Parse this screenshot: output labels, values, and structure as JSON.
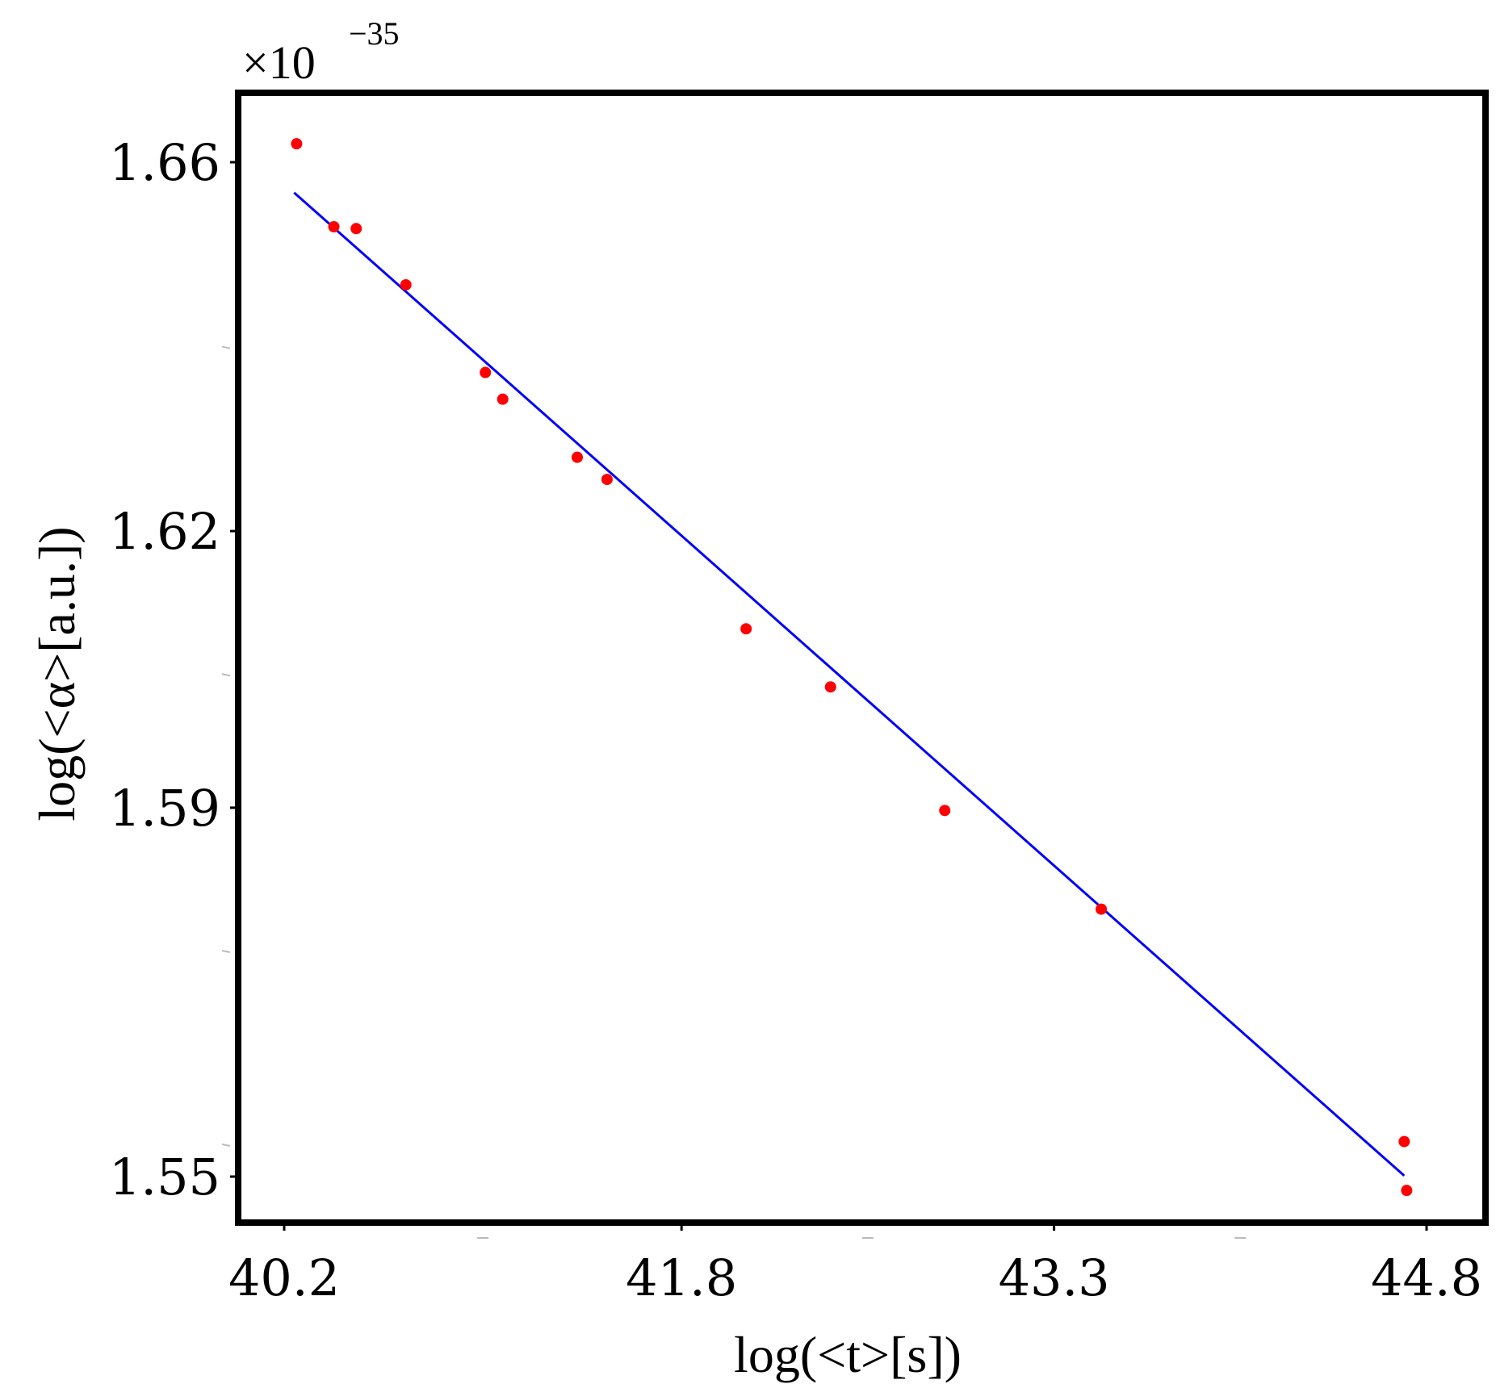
{
  "chart_data": {
    "type": "scatter",
    "title": "",
    "xlabel": "log(<t>[s])",
    "ylabel": "log(<α>[a.u.])",
    "y_multiplier": {
      "base": "×10",
      "exponent": "−35"
    },
    "xlim": [
      40.2,
      44.8
    ],
    "ylim": [
      1.5475,
      1.6725
    ],
    "x_ticks": [
      {
        "value": 40.2,
        "label": "40.2"
      },
      {
        "value": 41.8,
        "label": "41.8"
      },
      {
        "value": 43.3,
        "label": "43.3"
      },
      {
        "value": 44.8,
        "label": "44.8"
      }
    ],
    "x_minor_ticks": [
      41.0,
      42.55,
      44.05
    ],
    "y_ticks": [
      {
        "value": 1.66,
        "label": "1.66"
      },
      {
        "value": 1.62,
        "label": "1.62"
      },
      {
        "value": 1.59,
        "label": "1.59"
      },
      {
        "value": 1.55,
        "label": "1.55"
      }
    ],
    "y_minor_ticks": [
      1.64,
      1.6045,
      1.5745,
      1.5535
    ],
    "grid": false,
    "legend": "none",
    "series": [
      {
        "kind": "points",
        "color": "#ff0000",
        "points": [
          {
            "x": 40.25,
            "y": 1.662
          },
          {
            "x": 40.4,
            "y": 1.653
          },
          {
            "x": 40.49,
            "y": 1.6528
          },
          {
            "x": 40.69,
            "y": 1.6467
          },
          {
            "x": 41.01,
            "y": 1.6372
          },
          {
            "x": 41.08,
            "y": 1.6343
          },
          {
            "x": 41.38,
            "y": 1.628
          },
          {
            "x": 41.5,
            "y": 1.6256
          },
          {
            "x": 42.06,
            "y": 1.6094
          },
          {
            "x": 42.4,
            "y": 1.6031
          },
          {
            "x": 42.86,
            "y": 1.5897
          },
          {
            "x": 43.49,
            "y": 1.579
          },
          {
            "x": 44.71,
            "y": 1.5538
          },
          {
            "x": 44.72,
            "y": 1.5485
          }
        ]
      },
      {
        "kind": "fit-line",
        "color": "#0000ff",
        "points": [
          {
            "x": 40.24,
            "y": 1.6567
          },
          {
            "x": 44.71,
            "y": 1.5501
          }
        ]
      }
    ]
  }
}
